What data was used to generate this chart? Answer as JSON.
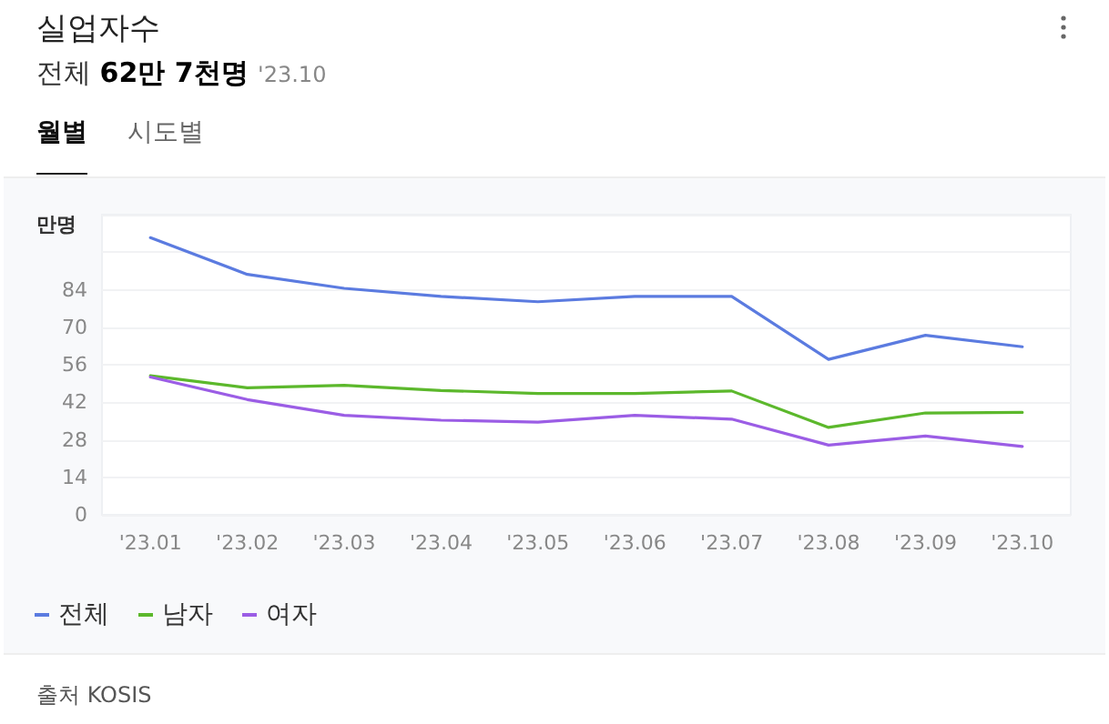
{
  "chart_data": {
    "type": "line",
    "title": "실업자수",
    "subtitle": "전체 62만 7천명 '23.10",
    "ylabel": "만명",
    "annotations": [
      "월별",
      "시도별",
      "출처 KOSIS"
    ],
    "categories": [
      "'23.01",
      "'23.02",
      "'23.03",
      "'23.04",
      "'23.05",
      "'23.06",
      "'23.07",
      "'23.08",
      "'23.09",
      "'23.10"
    ],
    "series": [
      {
        "name": "전체",
        "color": "#5b7be0",
        "values": [
          103.4,
          89.7,
          84.5,
          81.5,
          79.5,
          81.5,
          81.5,
          58,
          67,
          62.7
        ]
      },
      {
        "name": "남자",
        "color": "#5cb82c",
        "values": [
          51.9,
          47.4,
          48.3,
          46.4,
          45.3,
          45.3,
          46.2,
          32.6,
          38,
          38.2
        ]
      },
      {
        "name": "여자",
        "color": "#9b5de5",
        "values": [
          51.4,
          43,
          37.1,
          35.3,
          34.6,
          37.1,
          35.7,
          26,
          29.4,
          25.5
        ]
      }
    ],
    "ylim": [
      0,
      112
    ],
    "yticks": [
      0,
      14,
      28,
      42,
      56,
      70,
      84,
      {
        "value": 98,
        "label": null
      },
      {
        "value": 112,
        "label": null
      }
    ],
    "grid": "y",
    "legend": "bottom left",
    "marker": "none",
    "line_style": "solid"
  }
}
